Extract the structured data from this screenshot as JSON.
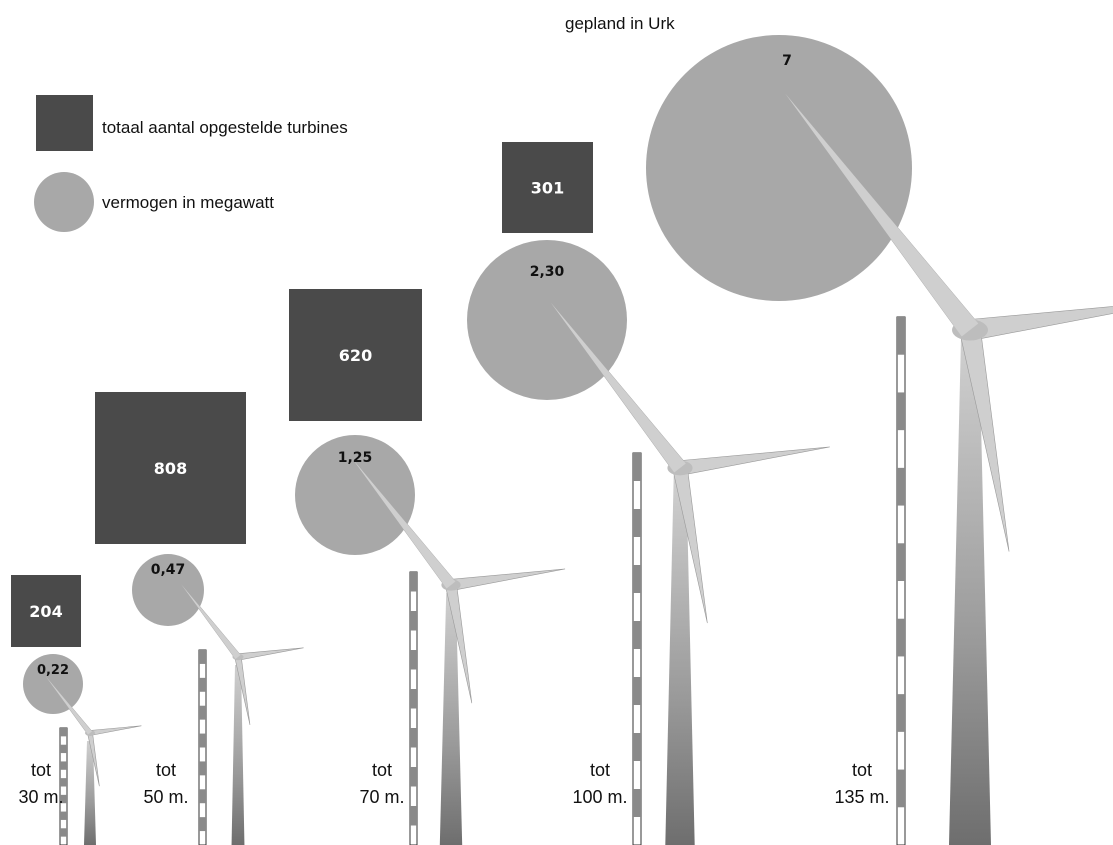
{
  "legend": {
    "squares_label": "totaal aantal opgestelde turbines",
    "circles_label": "vermogen in megawatt"
  },
  "annotation": "gepland in Urk",
  "chart_data": {
    "type": "other",
    "title": "",
    "categories": [
      "tot 30 m.",
      "tot 50 m.",
      "tot 70 m.",
      "tot 100 m.",
      "tot 135 m."
    ],
    "heights_m": [
      30,
      50,
      70,
      100,
      135
    ],
    "series": [
      {
        "name": "totaal aantal opgestelde turbines",
        "values": [
          204,
          808,
          620,
          301,
          null
        ]
      },
      {
        "name": "vermogen in megawatt",
        "values": [
          0.22,
          0.47,
          1.25,
          2.3,
          7
        ]
      }
    ],
    "items": [
      {
        "line1": "tot",
        "line2": "30 m.",
        "count_label": "204",
        "power_label": "0,22"
      },
      {
        "line1": "tot",
        "line2": "50 m.",
        "count_label": "808",
        "power_label": "0,47"
      },
      {
        "line1": "tot",
        "line2": "70 m.",
        "count_label": "620",
        "power_label": "1,25"
      },
      {
        "line1": "tot",
        "line2": "100 m.",
        "count_label": "301",
        "power_label": "2,30"
      },
      {
        "line1": "tot",
        "line2": "135 m.",
        "count_label": "",
        "power_label": "7"
      }
    ],
    "colors": {
      "square": "#4a4a4a",
      "circle": "#a8a8a8",
      "turbine_light": "#cfcfcf",
      "turbine_dark": "#7a7a7a"
    }
  }
}
